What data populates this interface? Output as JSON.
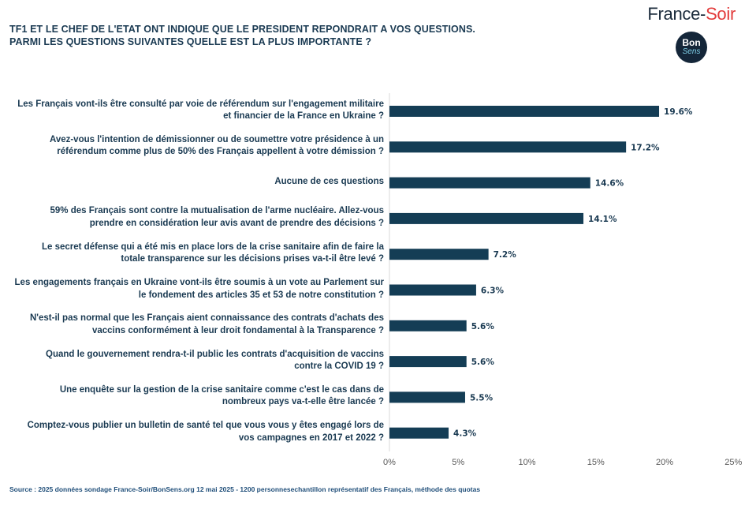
{
  "header": {
    "title_line1": "TF1 ET LE CHEF DE L'ETAT ONT INDIQUE QUE LE PRESIDENT REPONDRAIT A VOS QUESTIONS.",
    "title_line2": "PARMI LES QUESTIONS SUIVANTES QUELLE EST LA PLUS IMPORTANTE ?",
    "brand_part1": "France-",
    "brand_part2": "Soir",
    "logo_line1": "Bon",
    "logo_line2": "Sens"
  },
  "source": "Source : 2025 données sondage France-Soir/BonSens.org 12 mai 2025 - 1200 personnesechantillon représentatif des Français, méthode des quotas",
  "colors": {
    "bar": "#143d55",
    "text": "#1a3a52",
    "axis_labels": "#595959",
    "brand_accent": "#e23b3b"
  },
  "chart_data": {
    "type": "bar",
    "orientation": "horizontal",
    "categories": [
      "Les Français vont-ils être consulté par voie de référendum sur l'engagement militaire\net financier de la France en Ukraine ?",
      "Avez-vous l'intention de démissionner ou de soumettre votre présidence à un\nréférendum comme plus de 50% des Français appellent à votre démission ?",
      "Aucune de ces questions",
      "59% des Français sont contre la mutualisation de l'arme nucléaire. Allez-vous\nprendre en considération leur avis avant de prendre des décisions ?",
      "Le secret défense qui a été mis en place lors de la crise sanitaire afin de faire la\ntotale transparence sur les décisions prises va-t-il être levé ?",
      "Les engagements français en Ukraine vont-ils être soumis à un vote au Parlement sur\nle fondement des articles 35 et 53 de notre constitution ?",
      "N'est-il pas normal que les Français aient connaissance des contrats d'achats des\nvaccins conformément à leur droit fondamental à la Transparence ?",
      "Quand le gouvernement rendra-t-il public les contrats d'acquisition de vaccins\ncontre la COVID 19 ?",
      "Une enquête sur la gestion de la crise sanitaire comme c'est le cas dans de\nnombreux pays va-t-elle être lancée ?",
      "Comptez-vous publier un bulletin de santé tel que vous vous y êtes engagé lors de\nvos campagnes en 2017 et 2022 ?"
    ],
    "values": [
      19.6,
      17.2,
      14.6,
      14.1,
      7.2,
      6.3,
      5.6,
      5.6,
      5.5,
      4.3
    ],
    "value_labels": [
      "19.6%",
      "17.2%",
      "14.6%",
      "14.1%",
      "7.2%",
      "6.3%",
      "5.6%",
      "5.6%",
      "5.5%",
      "4.3%"
    ],
    "x_ticks": [
      0,
      5,
      10,
      15,
      20,
      25
    ],
    "x_tick_labels": [
      "0%",
      "5%",
      "10%",
      "15%",
      "20%",
      "25%"
    ],
    "xlim": [
      0,
      25
    ],
    "grid": false
  }
}
